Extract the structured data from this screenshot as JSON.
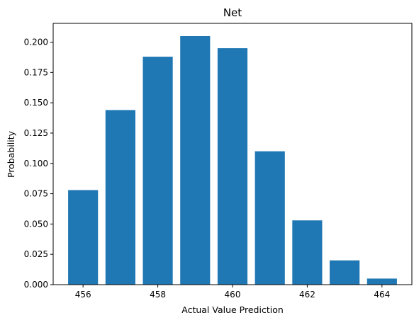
{
  "chart_data": {
    "type": "bar",
    "title": "Net",
    "xlabel": "Actual Value Prediction",
    "ylabel": "Probability",
    "x": [
      456,
      457,
      458,
      459,
      460,
      461,
      462,
      463,
      464
    ],
    "values": [
      0.078,
      0.144,
      0.188,
      0.205,
      0.195,
      0.11,
      0.053,
      0.02,
      0.005
    ],
    "bar_width": 0.8,
    "xlim": [
      455.2,
      464.8
    ],
    "ylim": [
      0,
      0.2155
    ],
    "xticks": [
      456,
      458,
      460,
      462,
      464
    ],
    "yticks": [
      0.0,
      0.025,
      0.05,
      0.075,
      0.1,
      0.125,
      0.15,
      0.175,
      0.2
    ],
    "ytick_labels": [
      "0.000",
      "0.025",
      "0.050",
      "0.075",
      "0.100",
      "0.125",
      "0.150",
      "0.175",
      "0.200"
    ],
    "bar_color": "#1f77b4",
    "grid": false,
    "legend": false
  }
}
